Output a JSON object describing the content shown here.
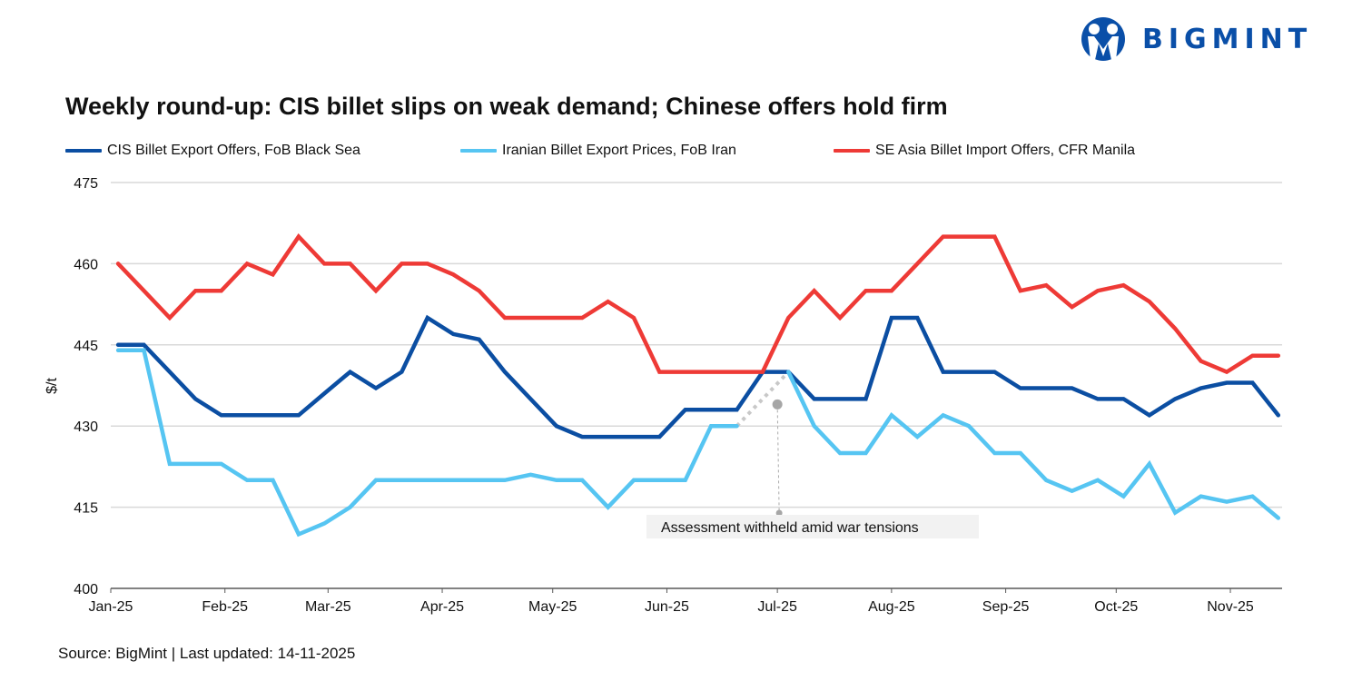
{
  "logo": {
    "text": "BIGMINT",
    "color": "#0a4fa8"
  },
  "chart_data": {
    "type": "line",
    "title": "Weekly round-up: CIS billet slips on weak demand; Chinese offers hold firm",
    "ylabel": "$/t",
    "xlabel": "",
    "ylim": [
      400,
      475
    ],
    "yticks": [
      "400",
      "415",
      "430",
      "445",
      "460",
      "475"
    ],
    "xticks": [
      {
        "label": "Jan-25",
        "date": "2025-01-01"
      },
      {
        "label": "Feb-25",
        "date": "2025-02-01"
      },
      {
        "label": "Mar-25",
        "date": "2025-03-01"
      },
      {
        "label": "Apr-25",
        "date": "2025-04-01"
      },
      {
        "label": "May-25",
        "date": "2025-05-01"
      },
      {
        "label": "Jun-25",
        "date": "2025-06-01"
      },
      {
        "label": "Jul-25",
        "date": "2025-07-01"
      },
      {
        "label": "Aug-25",
        "date": "2025-08-01"
      },
      {
        "label": "Sep-25",
        "date": "2025-09-01"
      },
      {
        "label": "Oct-25",
        "date": "2025-10-01"
      },
      {
        "label": "Nov-25",
        "date": "2025-11-01"
      }
    ],
    "grid": true,
    "legend_position": "top",
    "x": [
      "2025-01-03",
      "2025-01-10",
      "2025-01-17",
      "2025-01-24",
      "2025-01-31",
      "2025-02-07",
      "2025-02-14",
      "2025-02-21",
      "2025-02-28",
      "2025-03-07",
      "2025-03-14",
      "2025-03-21",
      "2025-03-28",
      "2025-04-04",
      "2025-04-11",
      "2025-04-18",
      "2025-04-25",
      "2025-05-02",
      "2025-05-09",
      "2025-05-16",
      "2025-05-23",
      "2025-05-30",
      "2025-06-06",
      "2025-06-13",
      "2025-06-20",
      "2025-06-27",
      "2025-07-04",
      "2025-07-11",
      "2025-07-18",
      "2025-07-25",
      "2025-08-01",
      "2025-08-08",
      "2025-08-15",
      "2025-08-22",
      "2025-08-29",
      "2025-09-05",
      "2025-09-12",
      "2025-09-19",
      "2025-09-26",
      "2025-10-03",
      "2025-10-10",
      "2025-10-17",
      "2025-10-24",
      "2025-10-31",
      "2025-11-07",
      "2025-11-14"
    ],
    "series": [
      {
        "name": "CIS Billet Export Offers, FoB Black Sea",
        "color": "#0b4ea2",
        "values": [
          445,
          445,
          440,
          435,
          432,
          432,
          432,
          432,
          436,
          440,
          437,
          440,
          450,
          447,
          446,
          440,
          435,
          430,
          428,
          428,
          428,
          428,
          433,
          433,
          433,
          440,
          440,
          435,
          435,
          435,
          450,
          450,
          440,
          440,
          440,
          437,
          437,
          437,
          435,
          435,
          432,
          435,
          437,
          438,
          438,
          432
        ]
      },
      {
        "name": "Iranian Billet Export Prices, FoB Iran",
        "color": "#56c5f2",
        "values": [
          444,
          444,
          423,
          423,
          423,
          420,
          420,
          410,
          412,
          415,
          420,
          420,
          420,
          420,
          420,
          420,
          421,
          420,
          420,
          415,
          420,
          420,
          420,
          430,
          430,
          null,
          440,
          430,
          425,
          425,
          432,
          428,
          432,
          430,
          425,
          425,
          420,
          418,
          420,
          417,
          423,
          414,
          417,
          416,
          417,
          413
        ]
      },
      {
        "name": "SE Asia Billet Import Offers, CFR Manila",
        "color": "#ee3a36",
        "values": [
          460,
          455,
          450,
          455,
          455,
          460,
          458,
          465,
          460,
          460,
          455,
          460,
          460,
          458,
          455,
          450,
          450,
          450,
          450,
          453,
          450,
          440,
          440,
          440,
          440,
          440,
          450,
          455,
          450,
          455,
          455,
          460,
          465,
          465,
          465,
          455,
          456,
          452,
          455,
          456,
          453,
          448,
          442,
          440,
          443,
          443
        ]
      }
    ],
    "annotations": [
      {
        "text": "Assessment withheld amid  war tensions",
        "date": "2025-07-01",
        "value": 434,
        "series": "Iranian Billet Export Prices, FoB Iran",
        "gap_from": "2025-06-20",
        "gap_to": "2025-07-04"
      }
    ]
  },
  "footer": {
    "source": "Source: BigMint | Last updated: 14-11-2025"
  }
}
